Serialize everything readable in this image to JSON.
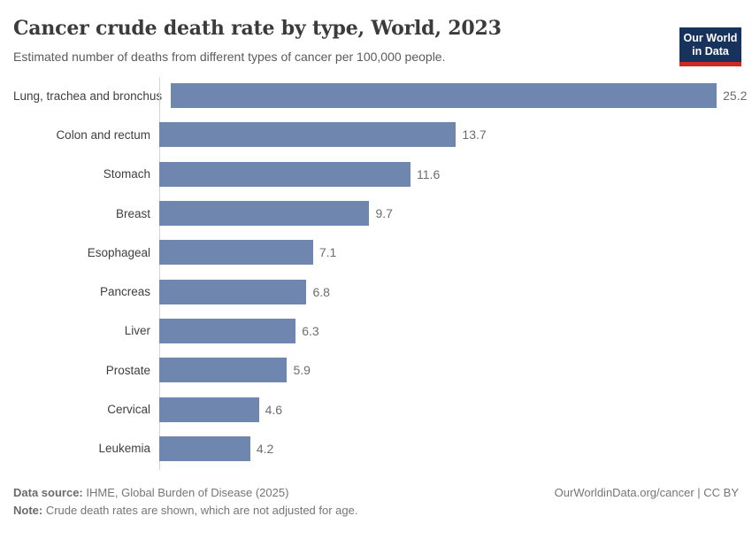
{
  "header": {
    "title": "Cancer crude death rate by type, World, 2023",
    "subtitle": "Estimated number of deaths from different types of cancer per 100,000 people."
  },
  "logo": {
    "line1": "Our World",
    "line2": "in Data",
    "bg_color": "#18335b",
    "accent_color": "#cc2a24"
  },
  "chart_data": {
    "type": "bar",
    "orientation": "horizontal",
    "title": "Cancer crude death rate by type, World, 2023",
    "subtitle": "Estimated number of deaths from different types of cancer per 100,000 people.",
    "categories": [
      "Lung, trachea and bronchus",
      "Colon and rectum",
      "Stomach",
      "Breast",
      "Esophageal",
      "Pancreas",
      "Liver",
      "Prostate",
      "Cervical",
      "Leukemia"
    ],
    "values": [
      25.2,
      13.7,
      11.6,
      9.7,
      7.1,
      6.8,
      6.3,
      5.9,
      4.6,
      4.2
    ],
    "xlabel": "",
    "ylabel": "",
    "xlim": [
      0,
      26.8
    ],
    "grid": false,
    "legend": false,
    "bar_color": "#6f87ae",
    "value_label_color": "#6d6d6d"
  },
  "footer": {
    "data_source_label": "Data source:",
    "data_source_text": " IHME, Global Burden of Disease (2025)",
    "note_label": "Note:",
    "note_text": " Crude death rates are shown, which are not adjusted for age.",
    "link_text": "OurWorldinData.org/cancer | CC BY"
  }
}
